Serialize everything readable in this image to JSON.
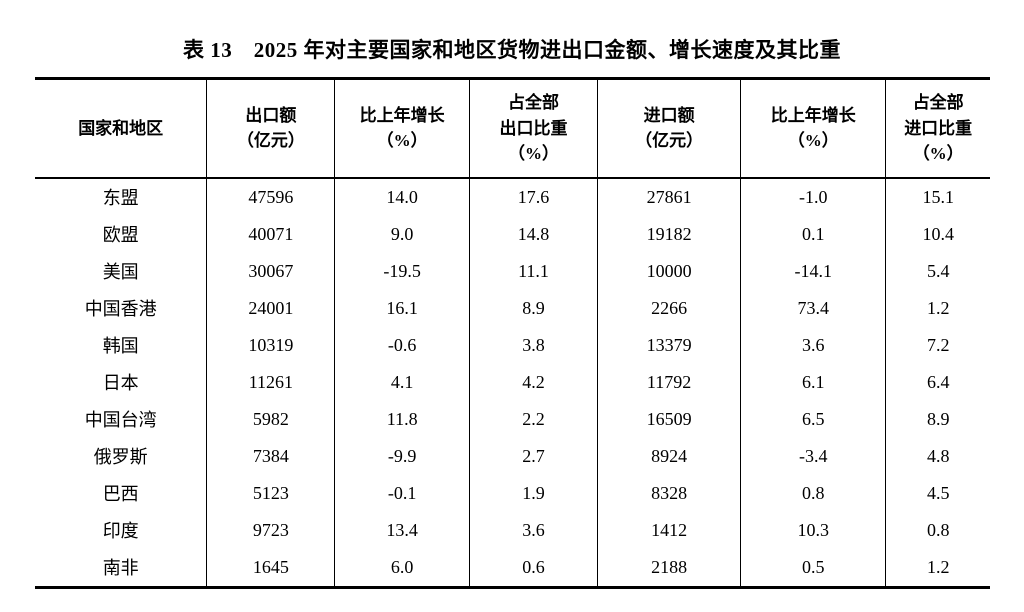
{
  "title": "表 13　2025 年对主要国家和地区货物进出口金额、增长速度及其比重",
  "colors": {
    "text": "#000000",
    "background": "#ffffff",
    "rule": "#000000"
  },
  "table": {
    "column_headers": [
      {
        "lines": [
          "国家和地区"
        ]
      },
      {
        "lines": [
          "出口额",
          "（亿元）"
        ]
      },
      {
        "lines": [
          "比上年增长",
          "（%）"
        ]
      },
      {
        "lines": [
          "占全部",
          "出口比重",
          "（%）"
        ]
      },
      {
        "lines": [
          "进口额",
          "（亿元）"
        ]
      },
      {
        "lines": [
          "比上年增长",
          "（%）"
        ]
      },
      {
        "lines": [
          "占全部",
          "进口比重",
          "（%）"
        ]
      }
    ],
    "rows": [
      {
        "region": "东盟",
        "values": [
          "47596",
          "14.0",
          "17.6",
          "27861",
          "-1.0",
          "15.1"
        ]
      },
      {
        "region": "欧盟",
        "values": [
          "40071",
          "9.0",
          "14.8",
          "19182",
          "0.1",
          "10.4"
        ]
      },
      {
        "region": "美国",
        "values": [
          "30067",
          "-19.5",
          "11.1",
          "10000",
          "-14.1",
          "5.4"
        ]
      },
      {
        "region": "中国香港",
        "values": [
          "24001",
          "16.1",
          "8.9",
          "2266",
          "73.4",
          "1.2"
        ]
      },
      {
        "region": "韩国",
        "values": [
          "10319",
          "-0.6",
          "3.8",
          "13379",
          "3.6",
          "7.2"
        ]
      },
      {
        "region": "日本",
        "values": [
          "11261",
          "4.1",
          "4.2",
          "11792",
          "6.1",
          "6.4"
        ]
      },
      {
        "region": "中国台湾",
        "values": [
          "5982",
          "11.8",
          "2.2",
          "16509",
          "6.5",
          "8.9"
        ]
      },
      {
        "region": "俄罗斯",
        "values": [
          "7384",
          "-9.9",
          "2.7",
          "8924",
          "-3.4",
          "4.8"
        ]
      },
      {
        "region": "巴西",
        "values": [
          "5123",
          "-0.1",
          "1.9",
          "8328",
          "0.8",
          "4.5"
        ]
      },
      {
        "region": "印度",
        "values": [
          "9723",
          "13.4",
          "3.6",
          "1412",
          "10.3",
          "0.8"
        ]
      },
      {
        "region": "南非",
        "values": [
          "1645",
          "6.0",
          "0.6",
          "2188",
          "0.5",
          "1.2"
        ]
      }
    ]
  }
}
